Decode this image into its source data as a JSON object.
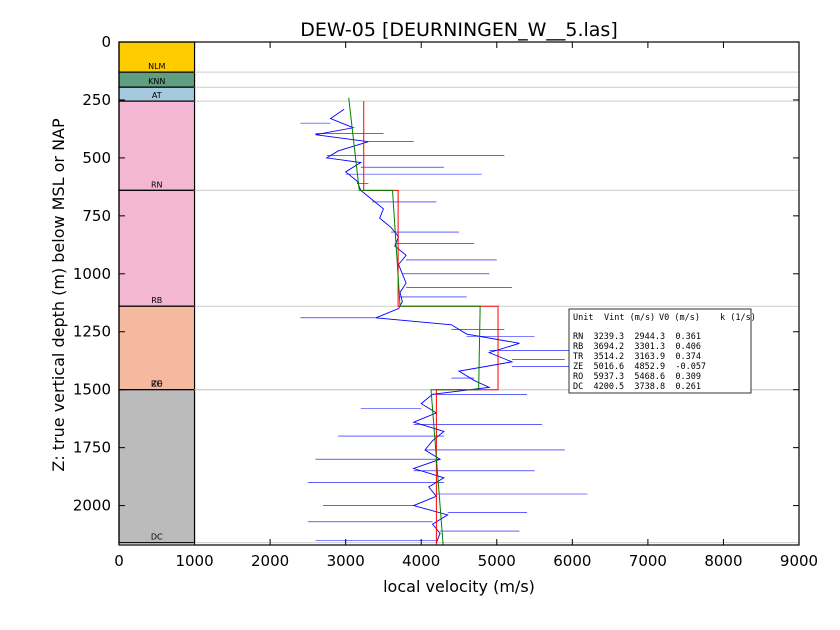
{
  "chart_data": {
    "type": "line",
    "title": "DEW-05 [DEURNINGEN_W__5.las]",
    "xlabel": "local velocity (m/s)",
    "ylabel": "Z: true vertical depth (m) below MSL or NAP",
    "xlim": [
      0,
      9000
    ],
    "ylim": [
      2170,
      0
    ],
    "y_inverted": true,
    "x_ticks": [
      0,
      1000,
      2000,
      3000,
      4000,
      5000,
      6000,
      7000,
      8000,
      9000
    ],
    "y_ticks": [
      0,
      250,
      500,
      750,
      1000,
      1250,
      1500,
      1750,
      2000
    ],
    "colors": {
      "log": "#0000ff",
      "interval_velocity": "#ff0000",
      "v0_k_model": "#008000",
      "boundary": "#cccccc"
    },
    "units": [
      {
        "name": "NLM",
        "top": 0,
        "base": 130,
        "color": "#ffcc00"
      },
      {
        "name": "KNN",
        "top": 130,
        "base": 195,
        "color": "#5f9e7f"
      },
      {
        "name": "AT",
        "top": 195,
        "base": 255,
        "color": "#a6c8dd"
      },
      {
        "name": "RN",
        "top": 255,
        "base": 640,
        "color": "#f3b6d3"
      },
      {
        "name": "RB",
        "top": 640,
        "base": 1140,
        "color": "#f3b6d3"
      },
      {
        "name": "ZE",
        "top": 1140,
        "base": 1500,
        "color": "#f5b9a0"
      },
      {
        "name": "RO",
        "top": 1140,
        "base": 1500,
        "color": "#f5b9a0"
      },
      {
        "name": "DC",
        "top": 1500,
        "base": 2160,
        "color": "#bbbbbb"
      }
    ],
    "table": {
      "headers": [
        "Unit",
        "Vint (m/s)",
        "V0 (m/s)",
        "k (1/s)"
      ],
      "rows": [
        [
          "RN",
          "3239.3",
          "2944.3",
          "0.361"
        ],
        [
          "RB",
          "3694.2",
          "3301.3",
          "0.406"
        ],
        [
          "TR",
          "3514.2",
          "3163.9",
          "0.374"
        ],
        [
          "ZE",
          "5016.6",
          "4852.9",
          "-0.057"
        ],
        [
          "RO",
          "5937.3",
          "5468.6",
          "0.309"
        ],
        [
          "DC",
          "4200.5",
          "3738.8",
          "0.261"
        ]
      ]
    },
    "series": [
      {
        "name": "",
        "role": "interval_velocity",
        "segments": [
          {
            "vint": 3239.3,
            "top": 255,
            "base": 640
          },
          {
            "vint": 3694.2,
            "top": 640,
            "base": 1140
          },
          {
            "vint": 5016.6,
            "top": 1140,
            "base": 1500
          },
          {
            "vint": 4200.5,
            "top": 1500,
            "base": 2170
          }
        ]
      },
      {
        "name": "",
        "role": "v0_k_model",
        "segments": [
          {
            "v_top": 3040,
            "v_base": 3180,
            "top": 240,
            "base": 640
          },
          {
            "v_top": 3620,
            "v_base": 3720,
            "top": 640,
            "base": 1140
          },
          {
            "v_top": 4780,
            "v_base": 4760,
            "top": 1140,
            "base": 1500
          },
          {
            "v_top": 4130,
            "v_base": 4290,
            "top": 1500,
            "base": 2170
          }
        ]
      },
      {
        "name": "",
        "role": "log",
        "points": [
          [
            2980,
            290
          ],
          [
            2800,
            330
          ],
          [
            3100,
            370
          ],
          [
            2600,
            400
          ],
          [
            3300,
            430
          ],
          [
            2900,
            470
          ],
          [
            2750,
            500
          ],
          [
            3200,
            520
          ],
          [
            3000,
            560
          ],
          [
            3150,
            600
          ],
          [
            3200,
            640
          ],
          [
            3350,
            680
          ],
          [
            3500,
            720
          ],
          [
            3450,
            760
          ],
          [
            3600,
            800
          ],
          [
            3700,
            840
          ],
          [
            3650,
            880
          ],
          [
            3800,
            920
          ],
          [
            3700,
            960
          ],
          [
            3750,
            1000
          ],
          [
            3800,
            1040
          ],
          [
            3720,
            1080
          ],
          [
            3750,
            1120
          ],
          [
            3700,
            1150
          ],
          [
            3400,
            1190
          ],
          [
            4400,
            1220
          ],
          [
            4600,
            1260
          ],
          [
            5300,
            1300
          ],
          [
            4900,
            1340
          ],
          [
            5200,
            1380
          ],
          [
            4500,
            1420
          ],
          [
            4700,
            1460
          ],
          [
            4900,
            1490
          ],
          [
            4150,
            1520
          ],
          [
            4000,
            1560
          ],
          [
            4200,
            1600
          ],
          [
            3900,
            1640
          ],
          [
            4300,
            1680
          ],
          [
            4150,
            1720
          ],
          [
            4050,
            1760
          ],
          [
            4250,
            1800
          ],
          [
            3900,
            1840
          ],
          [
            4300,
            1880
          ],
          [
            4100,
            1920
          ],
          [
            4200,
            1960
          ],
          [
            3900,
            2000
          ],
          [
            4350,
            2040
          ],
          [
            4150,
            2080
          ],
          [
            4250,
            2120
          ],
          [
            4200,
            2160
          ]
        ],
        "spikes": [
          [
            2400,
            350
          ],
          [
            3500,
            395
          ],
          [
            3900,
            430
          ],
          [
            5100,
            490
          ],
          [
            4300,
            540
          ],
          [
            4800,
            570
          ],
          [
            3300,
            610
          ],
          [
            4200,
            690
          ],
          [
            4500,
            820
          ],
          [
            4700,
            870
          ],
          [
            5000,
            940
          ],
          [
            4900,
            1000
          ],
          [
            5200,
            1060
          ],
          [
            4600,
            1100
          ],
          [
            2400,
            1190
          ],
          [
            5100,
            1240
          ],
          [
            5500,
            1270
          ],
          [
            6100,
            1330
          ],
          [
            5900,
            1370
          ],
          [
            6000,
            1400
          ],
          [
            4400,
            1450
          ],
          [
            5400,
            1520
          ],
          [
            3200,
            1580
          ],
          [
            5600,
            1650
          ],
          [
            2900,
            1700
          ],
          [
            5900,
            1760
          ],
          [
            2600,
            1800
          ],
          [
            5500,
            1850
          ],
          [
            2500,
            1900
          ],
          [
            6200,
            1950
          ],
          [
            2700,
            2000
          ],
          [
            5400,
            2030
          ],
          [
            2500,
            2070
          ],
          [
            5300,
            2110
          ],
          [
            2600,
            2150
          ]
        ]
      }
    ]
  }
}
